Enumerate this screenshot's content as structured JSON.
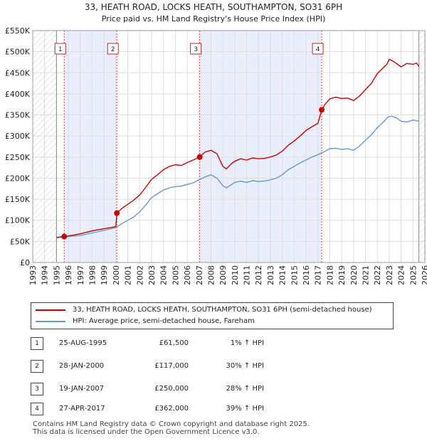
{
  "chart_data": {
    "type": "line",
    "title": "33, HEATH ROAD, LOCKS HEATH, SOUTHAMPTON, SO31 6PH",
    "subtitle": "Price paid vs. HM Land Registry's House Price Index (HPI)",
    "xlim": [
      1993,
      2026
    ],
    "ylim": [
      0,
      550000
    ],
    "y_ticks": [
      0,
      50000,
      100000,
      150000,
      200000,
      250000,
      300000,
      350000,
      400000,
      450000,
      500000,
      550000
    ],
    "y_tick_labels": [
      "£0",
      "£50K",
      "£100K",
      "£150K",
      "£200K",
      "£250K",
      "£300K",
      "£350K",
      "£400K",
      "£450K",
      "£500K",
      "£550K"
    ],
    "x_ticks": [
      1993,
      1994,
      1995,
      1996,
      1997,
      1998,
      1999,
      2000,
      2001,
      2002,
      2003,
      2004,
      2005,
      2006,
      2007,
      2008,
      2009,
      2010,
      2011,
      2012,
      2013,
      2014,
      2015,
      2016,
      2017,
      2018,
      2019,
      2020,
      2021,
      2022,
      2023,
      2024,
      2025,
      2026
    ],
    "x_tick_labels": [
      "1993",
      "1994",
      "1995",
      "1996",
      "1997",
      "1998",
      "1999",
      "2000",
      "2001",
      "2002",
      "2003",
      "2004",
      "2005",
      "2006",
      "2007",
      "2008",
      "2009",
      "2010",
      "2011",
      "2012",
      "2013",
      "2014",
      "2015",
      "2016",
      "2017",
      "2018",
      "2019",
      "2020",
      "2021",
      "2022",
      "2023",
      "2024",
      "2025",
      "2026"
    ],
    "data_start": 1995.0,
    "data_end": 2025.5,
    "series": [
      {
        "name": "33, HEATH ROAD, LOCKS HEATH, SOUTHAMPTON, SO31 6PH (semi-detached house)",
        "color": "#cc0000",
        "x": [
          1995.0,
          1995.65,
          1996.0,
          1997.0,
          1998.0,
          1999.0,
          2000.0,
          2000.08,
          2000.5,
          2001.0,
          2001.5,
          2002.0,
          2002.5,
          2003.0,
          2003.5,
          2004.0,
          2004.5,
          2005.0,
          2005.5,
          2006.0,
          2006.5,
          2007.05,
          2007.5,
          2008.0,
          2008.5,
          2009.0,
          2009.3,
          2009.7,
          2010.0,
          2010.5,
          2011.0,
          2011.5,
          2012.0,
          2012.5,
          2013.0,
          2013.5,
          2014.0,
          2014.5,
          2015.0,
          2015.5,
          2016.0,
          2016.5,
          2017.0,
          2017.32,
          2017.6,
          2018.0,
          2018.5,
          2019.0,
          2019.5,
          2020.0,
          2020.5,
          2021.0,
          2021.5,
          2022.0,
          2022.5,
          2022.8,
          2023.0,
          2023.3,
          2023.6,
          2024.0,
          2024.5,
          2025.0,
          2025.3,
          2025.5
        ],
        "y": [
          59000,
          61500,
          63000,
          68000,
          75000,
          80000,
          85000,
          117000,
          128000,
          138000,
          148000,
          160000,
          178000,
          197000,
          208000,
          220000,
          228000,
          232000,
          230000,
          237000,
          243000,
          250000,
          262000,
          266000,
          258000,
          228000,
          222000,
          234000,
          240000,
          246000,
          243000,
          248000,
          246000,
          247000,
          250000,
          255000,
          264000,
          278000,
          288000,
          300000,
          313000,
          322000,
          330000,
          362000,
          375000,
          388000,
          392000,
          389000,
          390000,
          384000,
          395000,
          410000,
          425000,
          448000,
          462000,
          470000,
          482000,
          478000,
          472000,
          464000,
          472000,
          470000,
          473000,
          465000
        ]
      },
      {
        "name": "HPI: Average price, semi-detached house, Fareham",
        "color": "#6699cc",
        "x": [
          1995.0,
          1996.0,
          1997.0,
          1998.0,
          1999.0,
          2000.0,
          2000.5,
          2001.0,
          2001.5,
          2002.0,
          2002.5,
          2003.0,
          2003.5,
          2004.0,
          2004.5,
          2005.0,
          2005.5,
          2006.0,
          2006.5,
          2007.0,
          2007.5,
          2008.0,
          2008.5,
          2009.0,
          2009.3,
          2009.7,
          2010.0,
          2010.5,
          2011.0,
          2011.5,
          2012.0,
          2012.5,
          2013.0,
          2013.5,
          2014.0,
          2014.5,
          2015.0,
          2015.5,
          2016.0,
          2016.5,
          2017.0,
          2017.5,
          2018.0,
          2018.5,
          2019.0,
          2019.5,
          2020.0,
          2020.5,
          2021.0,
          2021.5,
          2022.0,
          2022.5,
          2022.9,
          2023.2,
          2023.6,
          2024.0,
          2024.5,
          2025.0,
          2025.5
        ],
        "y": [
          60000,
          61500,
          64000,
          70000,
          76000,
          83000,
          92000,
          100000,
          108000,
          120000,
          136000,
          154000,
          163000,
          172000,
          177000,
          180000,
          181000,
          185000,
          189000,
          196000,
          203000,
          208000,
          200000,
          182000,
          177000,
          184000,
          190000,
          193000,
          190000,
          194000,
          192000,
          193000,
          196000,
          200000,
          208000,
          220000,
          228000,
          236000,
          243000,
          250000,
          256000,
          262000,
          270000,
          271000,
          268000,
          270000,
          266000,
          276000,
          290000,
          303000,
          320000,
          333000,
          345000,
          347000,
          343000,
          335000,
          333000,
          338000,
          335000
        ]
      }
    ],
    "sale_markers": [
      {
        "label": "1",
        "year": 1995.65,
        "price": 61500
      },
      {
        "label": "2",
        "year": 2000.08,
        "price": 117000
      },
      {
        "label": "3",
        "year": 2007.05,
        "price": 250000
      },
      {
        "label": "4",
        "year": 2017.32,
        "price": 362000
      }
    ],
    "shaded_spans": [
      [
        1995.65,
        2000.08
      ],
      [
        2007.05,
        2017.32
      ]
    ]
  },
  "legend": {
    "property_label": "33, HEATH ROAD, LOCKS HEATH, SOUTHAMPTON, SO31 6PH (semi-detached house)",
    "hpi_label": "HPI: Average price, semi-detached house, Fareham",
    "property_color": "#cc0000",
    "hpi_color": "#6699cc"
  },
  "transactions": [
    {
      "num": "1",
      "date": "25-AUG-1995",
      "price": "£61,500",
      "hpi": "1% ↑ HPI"
    },
    {
      "num": "2",
      "date": "28-JAN-2000",
      "price": "£117,000",
      "hpi": "30% ↑ HPI"
    },
    {
      "num": "3",
      "date": "19-JAN-2007",
      "price": "£250,000",
      "hpi": "28% ↑ HPI"
    },
    {
      "num": "4",
      "date": "27-APR-2017",
      "price": "£362,000",
      "hpi": "39% ↑ HPI"
    }
  ],
  "footer": {
    "line1": "Contains HM Land Registry data © Crown copyright and database right 2025.",
    "line2": "This data is licensed under the Open Government Licence v3.0."
  }
}
